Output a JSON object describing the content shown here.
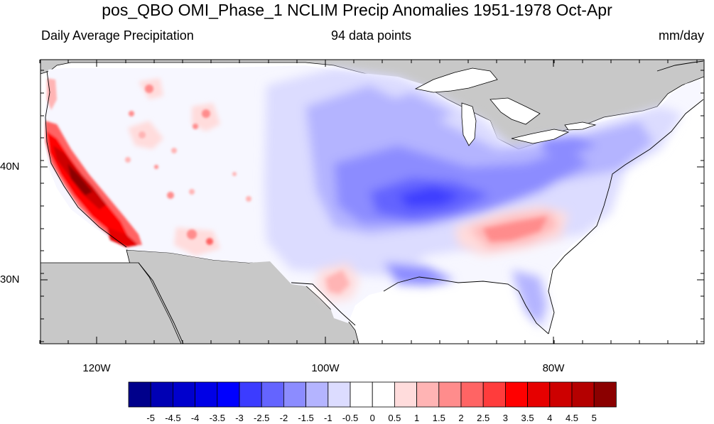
{
  "header": {
    "title": "pos_QBO OMI_Phase_1 NCLIM Precip Anomalies 1951-1978 Oct-Apr",
    "left_subtitle": "Daily Average Precipitation",
    "center_subtitle": "94 data points",
    "right_subtitle": "mm/day"
  },
  "axes": {
    "lat_labels": [
      "40N",
      "30N"
    ],
    "lon_labels": [
      "120W",
      "100W",
      "80W"
    ]
  },
  "colorbar": {
    "labels": [
      "-5",
      "-4.5",
      "-4",
      "-3.5",
      "-3",
      "-2.5",
      "-2",
      "-1.5",
      "-1",
      "-0.5",
      "0",
      "0.5",
      "1",
      "1.5",
      "2",
      "2.5",
      "3",
      "3.5",
      "4",
      "4.5",
      "5"
    ],
    "colors": [
      "#00008b",
      "#0000b4",
      "#0000cd",
      "#0000e6",
      "#0000ff",
      "#3c3cff",
      "#6464ff",
      "#8c8cff",
      "#b4b4ff",
      "#dcdcff",
      "#ffffff",
      "#ffffff",
      "#ffdcdc",
      "#ffb4b4",
      "#ff8c8c",
      "#ff6464",
      "#ff3c3c",
      "#ff0000",
      "#e60000",
      "#cd0000",
      "#b40000",
      "#8b0000"
    ]
  },
  "colors": {
    "land_mask": "#c8c8c8",
    "ocean": "#ffffff",
    "coastline": "#000000"
  }
}
